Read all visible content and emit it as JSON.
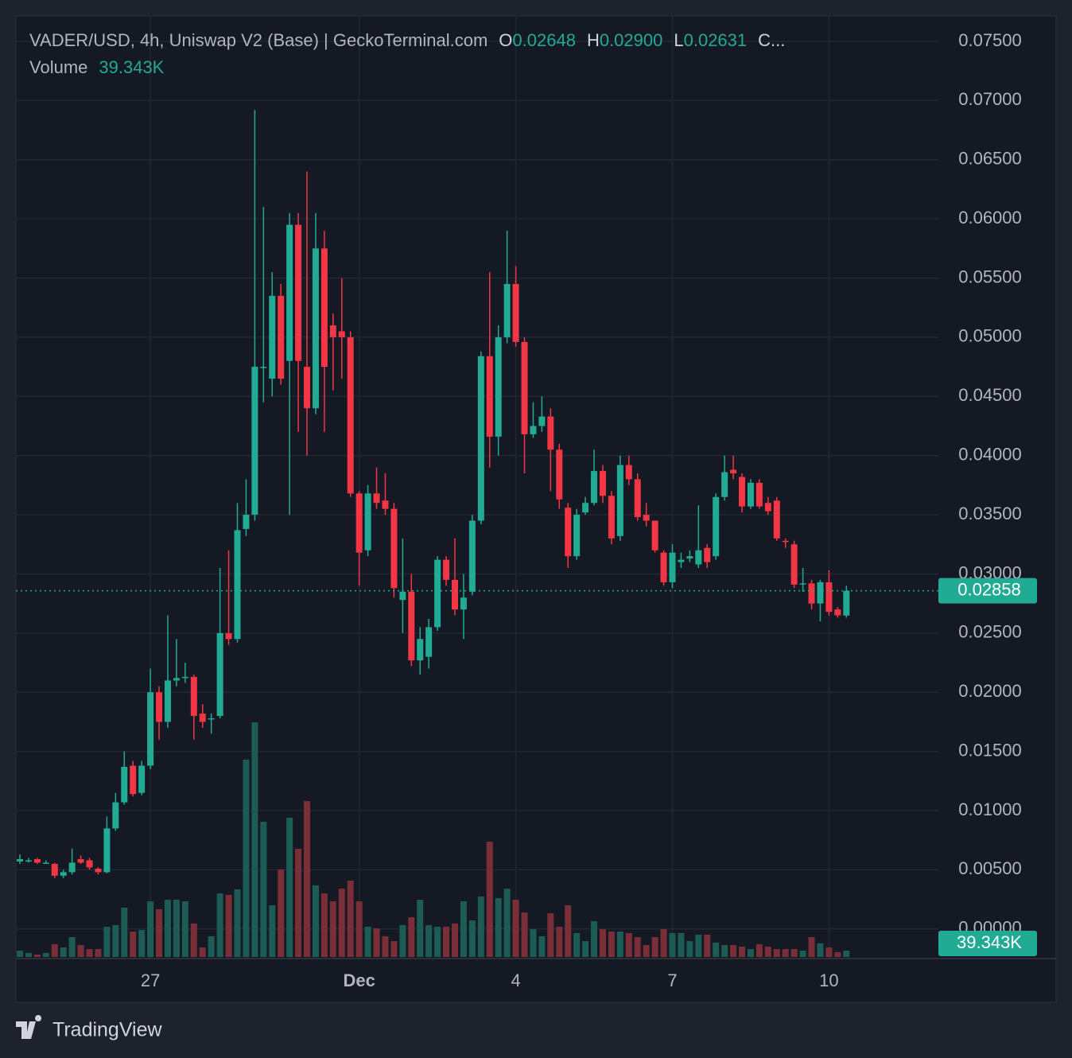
{
  "chart_data": {
    "type": "candlestick",
    "header": {
      "title": "VADER/USD, 4h, Uniswap V2 (Base) | GeckoTerminal.com",
      "ohlc": [
        {
          "key": "O",
          "value": "0.02648"
        },
        {
          "key": "H",
          "value": "0.02900"
        },
        {
          "key": "L",
          "value": "0.02631"
        },
        {
          "key": "C..."
        }
      ],
      "volume_label": "Volume"
    },
    "open": [
      0.0057,
      0.0058,
      0.0059,
      0.0056,
      0.0055,
      0.0045,
      0.0048,
      0.0059,
      0.0058,
      0.0051,
      0.0048,
      0.0085,
      0.0107,
      0.0138,
      0.0115,
      0.0138,
      0.02,
      0.0175,
      0.021,
      0.0213,
      0.0213,
      0.0182,
      0.0177,
      0.018,
      0.025,
      0.0245,
      0.0338,
      0.035,
      0.0475,
      0.0465,
      0.0535,
      0.048,
      0.0595,
      0.0475,
      0.044,
      0.0575,
      0.051,
      0.0505,
      0.05,
      0.0368,
      0.032,
      0.0368,
      0.0362,
      0.0355,
      0.0278,
      0.0285,
      0.0227,
      0.023,
      0.0255,
      0.0312,
      0.0295,
      0.027,
      0.0285,
      0.0345,
      0.0484,
      0.0416,
      0.05,
      0.0545,
      0.0496,
      0.0418,
      0.0425,
      0.0433,
      0.0405,
      0.0356,
      0.0315,
      0.0352,
      0.036,
      0.0387,
      0.0366,
      0.0332,
      0.0392,
      0.038,
      0.035,
      0.0345,
      0.0318,
      0.0293,
      0.031,
      0.0313,
      0.0308,
      0.0322,
      0.0315,
      0.0365,
      0.0388,
      0.0382,
      0.0357,
      0.0377,
      0.036,
      0.0362,
      0.0328,
      0.0325,
      0.0291,
      0.0292,
      0.0275,
      0.0293,
      0.027,
      0.02648
    ],
    "high": [
      0.0063,
      0.006,
      0.006,
      0.0058,
      0.0056,
      0.005,
      0.0068,
      0.0062,
      0.006,
      0.0052,
      0.0095,
      0.0115,
      0.015,
      0.0142,
      0.0142,
      0.022,
      0.0205,
      0.0265,
      0.0245,
      0.0225,
      0.0215,
      0.019,
      0.0182,
      0.0305,
      0.032,
      0.036,
      0.038,
      0.0692,
      0.061,
      0.0555,
      0.0545,
      0.0605,
      0.0605,
      0.064,
      0.0605,
      0.059,
      0.052,
      0.055,
      0.0505,
      0.037,
      0.0375,
      0.039,
      0.0385,
      0.036,
      0.033,
      0.03,
      0.0255,
      0.0262,
      0.0315,
      0.0315,
      0.033,
      0.03,
      0.035,
      0.0488,
      0.0555,
      0.051,
      0.059,
      0.056,
      0.05,
      0.0445,
      0.045,
      0.044,
      0.041,
      0.036,
      0.0355,
      0.0365,
      0.0405,
      0.0392,
      0.037,
      0.04,
      0.04,
      0.0385,
      0.036,
      0.0345,
      0.032,
      0.0325,
      0.0318,
      0.032,
      0.0358,
      0.0325,
      0.0368,
      0.04,
      0.04,
      0.0385,
      0.038,
      0.038,
      0.0365,
      0.0365,
      0.033,
      0.0328,
      0.0305,
      0.0295,
      0.0295,
      0.0303,
      0.0272,
      0.029
    ],
    "low": [
      0.0055,
      0.0056,
      0.0055,
      0.0055,
      0.0043,
      0.0043,
      0.0046,
      0.0055,
      0.005,
      0.0046,
      0.0047,
      0.0083,
      0.0105,
      0.0112,
      0.0113,
      0.0135,
      0.016,
      0.017,
      0.0205,
      0.0208,
      0.016,
      0.017,
      0.0165,
      0.0178,
      0.024,
      0.0242,
      0.0332,
      0.0345,
      0.0445,
      0.045,
      0.046,
      0.035,
      0.042,
      0.04,
      0.0435,
      0.042,
      0.0455,
      0.0465,
      0.0365,
      0.029,
      0.0315,
      0.0355,
      0.035,
      0.028,
      0.025,
      0.0222,
      0.0215,
      0.022,
      0.0252,
      0.029,
      0.0265,
      0.0245,
      0.0282,
      0.0342,
      0.039,
      0.04,
      0.0495,
      0.0492,
      0.0385,
      0.0415,
      0.042,
      0.037,
      0.0355,
      0.0305,
      0.0312,
      0.035,
      0.0358,
      0.036,
      0.0325,
      0.0328,
      0.0375,
      0.0345,
      0.034,
      0.0318,
      0.029,
      0.0288,
      0.0305,
      0.031,
      0.0305,
      0.0305,
      0.0312,
      0.0362,
      0.038,
      0.0352,
      0.0355,
      0.0355,
      0.035,
      0.0328,
      0.0322,
      0.0288,
      0.0285,
      0.027,
      0.026,
      0.0265,
      0.0263,
      0.02631
    ],
    "close": [
      0.0059,
      0.0058,
      0.0056,
      0.0056,
      0.0045,
      0.0048,
      0.0056,
      0.0056,
      0.0052,
      0.0048,
      0.0085,
      0.0107,
      0.0137,
      0.0114,
      0.0138,
      0.02,
      0.0175,
      0.021,
      0.0212,
      0.0213,
      0.018,
      0.0175,
      0.0178,
      0.025,
      0.0245,
      0.0337,
      0.035,
      0.0475,
      0.0475,
      0.0535,
      0.0465,
      0.0595,
      0.048,
      0.044,
      0.0575,
      0.0475,
      0.05,
      0.05,
      0.0368,
      0.0318,
      0.0368,
      0.036,
      0.0355,
      0.0288,
      0.0285,
      0.0227,
      0.0245,
      0.0255,
      0.0312,
      0.0295,
      0.027,
      0.028,
      0.0345,
      0.0484,
      0.0416,
      0.05,
      0.0545,
      0.0496,
      0.0418,
      0.0425,
      0.0433,
      0.0405,
      0.0363,
      0.0315,
      0.035,
      0.036,
      0.0387,
      0.0366,
      0.033,
      0.0392,
      0.038,
      0.0348,
      0.0345,
      0.032,
      0.0293,
      0.0318,
      0.0312,
      0.0315,
      0.032,
      0.031,
      0.0365,
      0.0386,
      0.0385,
      0.0357,
      0.0377,
      0.0357,
      0.0353,
      0.033,
      0.0327,
      0.0291,
      0.0292,
      0.0275,
      0.0293,
      0.0268,
      0.0265,
      0.02858
    ],
    "volume": [
      39000,
      25000,
      15000,
      25000,
      79000,
      59000,
      123000,
      74000,
      49000,
      49000,
      187000,
      197000,
      305000,
      157000,
      167000,
      344000,
      295000,
      354000,
      354000,
      344000,
      207000,
      59000,
      128000,
      393000,
      384000,
      418000,
      1220000,
      1451000,
      836000,
      320000,
      541000,
      861000,
      669000,
      964000,
      443000,
      393000,
      344000,
      423000,
      472000,
      344000,
      187000,
      177000,
      128000,
      98000,
      197000,
      246000,
      354000,
      197000,
      187000,
      187000,
      207000,
      344000,
      226000,
      374000,
      713000,
      364000,
      423000,
      354000,
      275000,
      172000,
      128000,
      270000,
      187000,
      320000,
      148000,
      98000,
      221000,
      172000,
      157000,
      157000,
      148000,
      123000,
      74000,
      123000,
      172000,
      148000,
      148000,
      98000,
      138000,
      138000,
      89000,
      74000,
      74000,
      64000,
      49000,
      79000,
      64000,
      49000,
      49000,
      49000,
      39000,
      123000,
      84000,
      59000,
      30000,
      39343
    ],
    "colors": {
      "up": "#22ab94",
      "down": "#f23645",
      "volume_up": "#1d5c55",
      "volume_down": "#7a2f38"
    },
    "ylim": [
      -0.0025,
      0.07715
    ],
    "yticks": [
      {
        "value": 0,
        "label": "0.00000"
      },
      {
        "value": 0.005,
        "label": "0.00500"
      },
      {
        "value": 0.01,
        "label": "0.01000"
      },
      {
        "value": 0.015,
        "label": "0.01500"
      },
      {
        "value": 0.02,
        "label": "0.02000"
      },
      {
        "value": 0.025,
        "label": "0.02500"
      },
      {
        "value": 0.03,
        "label": "0.03000"
      },
      {
        "value": 0.035,
        "label": "0.03500"
      },
      {
        "value": 0.04,
        "label": "0.04000"
      },
      {
        "value": 0.045,
        "label": "0.04500"
      },
      {
        "value": 0.05,
        "label": "0.05000"
      },
      {
        "value": 0.055,
        "label": "0.05500"
      },
      {
        "value": 0.06,
        "label": "0.06000"
      },
      {
        "value": 0.065,
        "label": "0.06500"
      },
      {
        "value": 0.07,
        "label": "0.07000"
      },
      {
        "value": 0.075,
        "label": "0.07500"
      }
    ],
    "xticks": [
      {
        "value": 15,
        "label": "27"
      },
      {
        "value": 39,
        "label": "Dec"
      },
      {
        "value": 57,
        "label": "4"
      },
      {
        "value": 75,
        "label": "7"
      },
      {
        "value": 93,
        "label": "10"
      }
    ],
    "last_price": {
      "value": 0.02858,
      "label": "0.02858"
    },
    "last_volume": {
      "value": 39343,
      "label": "39.343K"
    },
    "grid": true,
    "brand": "TradingView"
  }
}
